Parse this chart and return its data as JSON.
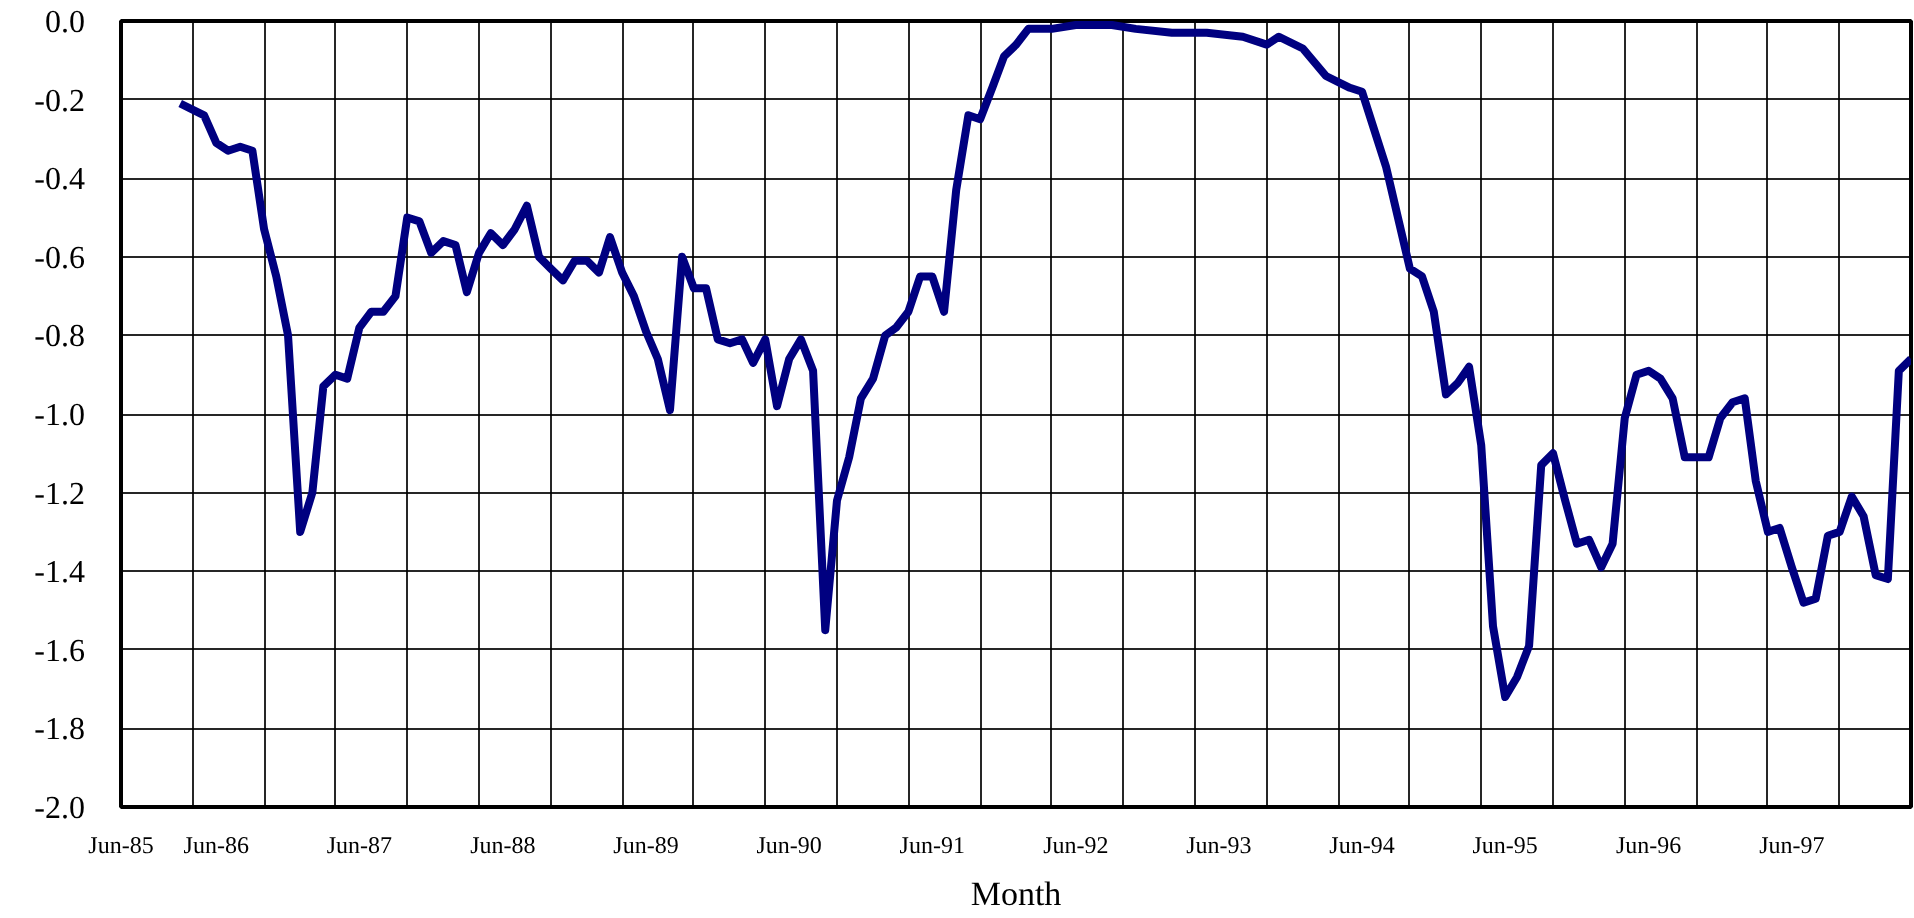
{
  "chart_data": {
    "type": "line",
    "xlabel": "Month",
    "x": [
      "1986-03",
      "1986-05",
      "1986-06",
      "1986-07",
      "1986-08",
      "1986-09",
      "1986-10",
      "1986-11",
      "1986-12",
      "1987-01",
      "1987-02",
      "1987-03",
      "1987-04",
      "1987-05",
      "1987-06",
      "1987-07",
      "1987-08",
      "1987-09",
      "1987-10",
      "1987-11",
      "1987-12",
      "1988-01",
      "1988-02",
      "1988-03",
      "1988-04",
      "1988-05",
      "1988-06",
      "1988-07",
      "1988-08",
      "1988-09",
      "1988-10",
      "1988-11",
      "1988-12",
      "1989-01",
      "1989-02",
      "1989-03",
      "1989-04",
      "1989-05",
      "1989-06",
      "1989-07",
      "1989-08",
      "1989-09",
      "1989-10",
      "1989-11",
      "1989-12",
      "1990-01",
      "1990-02",
      "1990-03",
      "1990-04",
      "1990-05",
      "1990-06",
      "1990-07",
      "1990-08",
      "1990-09",
      "1990-10",
      "1990-11",
      "1990-12",
      "1991-01",
      "1991-02",
      "1991-03",
      "1991-04",
      "1991-05",
      "1991-06",
      "1991-07",
      "1991-08",
      "1991-09",
      "1991-10",
      "1991-11",
      "1991-12",
      "1992-01",
      "1992-02",
      "1992-04",
      "1992-06",
      "1992-09",
      "1992-11",
      "1993-02",
      "1993-05",
      "1993-08",
      "1993-10",
      "1993-11",
      "1994-01",
      "1994-03",
      "1994-05",
      "1994-06",
      "1994-08",
      "1994-10",
      "1994-11",
      "1994-12",
      "1995-01",
      "1995-02",
      "1995-03",
      "1995-04",
      "1995-05",
      "1995-06",
      "1995-07",
      "1995-08",
      "1995-09",
      "1995-10",
      "1995-11",
      "1995-12",
      "1996-01",
      "1996-02",
      "1996-03",
      "1996-04",
      "1996-05",
      "1996-06",
      "1996-07",
      "1996-08",
      "1996-09",
      "1996-10",
      "1996-11",
      "1996-12",
      "1997-01",
      "1997-02",
      "1997-03",
      "1997-04",
      "1997-05",
      "1997-06",
      "1997-07",
      "1997-08",
      "1997-09",
      "1997-10",
      "1997-11",
      "1997-12",
      "1998-01",
      "1998-02",
      "1998-03",
      "1998-04"
    ],
    "series": [
      {
        "color": "#000080",
        "values": [
          -0.21,
          -0.24,
          -0.31,
          -0.33,
          -0.32,
          -0.33,
          -0.53,
          -0.65,
          -0.8,
          -1.3,
          -1.2,
          -0.93,
          -0.9,
          -0.91,
          -0.78,
          -0.74,
          -0.74,
          -0.7,
          -0.5,
          -0.51,
          -0.59,
          -0.56,
          -0.57,
          -0.69,
          -0.59,
          -0.54,
          -0.57,
          -0.53,
          -0.47,
          -0.6,
          -0.63,
          -0.66,
          -0.61,
          -0.61,
          -0.64,
          -0.55,
          -0.64,
          -0.7,
          -0.79,
          -0.86,
          -0.99,
          -0.6,
          -0.68,
          -0.68,
          -0.81,
          -0.82,
          -0.81,
          -0.87,
          -0.81,
          -0.98,
          -0.86,
          -0.81,
          -0.89,
          -1.55,
          -1.22,
          -1.11,
          -0.96,
          -0.91,
          -0.8,
          -0.78,
          -0.74,
          -0.65,
          -0.65,
          -0.74,
          -0.43,
          -0.24,
          -0.25,
          -0.17,
          -0.09,
          -0.06,
          -0.02,
          -0.02,
          -0.01,
          -0.01,
          -0.02,
          -0.03,
          -0.03,
          -0.04,
          -0.06,
          -0.04,
          -0.07,
          -0.14,
          -0.17,
          -0.18,
          -0.37,
          -0.63,
          -0.65,
          -0.74,
          -0.95,
          -0.92,
          -0.88,
          -1.08,
          -1.54,
          -1.72,
          -1.67,
          -1.59,
          -1.13,
          -1.1,
          -1.22,
          -1.33,
          -1.32,
          -1.39,
          -1.33,
          -1.01,
          -0.9,
          -0.89,
          -0.91,
          -0.96,
          -1.11,
          -1.11,
          -1.11,
          -1.01,
          -0.97,
          -0.96,
          -1.17,
          -1.3,
          -1.29,
          -1.39,
          -1.48,
          -1.47,
          -1.31,
          -1.3,
          -1.21,
          -1.26,
          -1.41,
          -1.42,
          -0.89,
          -0.86
        ]
      }
    ],
    "xlim": [
      "1985-10",
      "1998-04"
    ],
    "xticks": [
      {
        "value": "1985-10",
        "label": null
      },
      {
        "value": "1986-04",
        "label": null
      },
      {
        "value": "1986-06",
        "label": "Jun-86"
      },
      {
        "value": "1986-10",
        "label": null
      },
      {
        "value": "1987-04",
        "label": null
      },
      {
        "value": "1987-06",
        "label": "Jun-87"
      },
      {
        "value": "1987-10",
        "label": null
      },
      {
        "value": "1988-04",
        "label": null
      },
      {
        "value": "1988-06",
        "label": "Jun-88"
      },
      {
        "value": "1988-10",
        "label": null
      },
      {
        "value": "1989-04",
        "label": null
      },
      {
        "value": "1989-06",
        "label": "Jun-89"
      },
      {
        "value": "1989-10",
        "label": null
      },
      {
        "value": "1990-04",
        "label": null
      },
      {
        "value": "1990-06",
        "label": "Jun-90"
      },
      {
        "value": "1990-10",
        "label": null
      },
      {
        "value": "1991-04",
        "label": null
      },
      {
        "value": "1991-06",
        "label": "Jun-91"
      },
      {
        "value": "1991-10",
        "label": null
      },
      {
        "value": "1992-04",
        "label": null
      },
      {
        "value": "1992-06",
        "label": "Jun-92"
      },
      {
        "value": "1992-10",
        "label": null
      },
      {
        "value": "1993-04",
        "label": null
      },
      {
        "value": "1993-06",
        "label": "Jun-93"
      },
      {
        "value": "1993-10",
        "label": null
      },
      {
        "value": "1994-04",
        "label": null
      },
      {
        "value": "1994-06",
        "label": "Jun-94"
      },
      {
        "value": "1994-10",
        "label": null
      },
      {
        "value": "1995-04",
        "label": null
      },
      {
        "value": "1995-06",
        "label": "Jun-95"
      },
      {
        "value": "1995-10",
        "label": null
      },
      {
        "value": "1996-04",
        "label": null
      },
      {
        "value": "1996-06",
        "label": "Jun-96"
      },
      {
        "value": "1996-10",
        "label": null
      },
      {
        "value": "1997-04",
        "label": null
      },
      {
        "value": "1997-06",
        "label": "Jun-97"
      },
      {
        "value": "1997-10",
        "label": null
      }
    ],
    "ylim": [
      -2.0,
      0.0
    ],
    "yticks": [
      {
        "value": 0.0,
        "label": "0.0"
      },
      {
        "value": -0.2,
        "label": "-0.2"
      },
      {
        "value": -0.4,
        "label": "-0.4"
      },
      {
        "value": -0.6,
        "label": "-0.6"
      },
      {
        "value": -0.8,
        "label": "-0.8"
      },
      {
        "value": -1.0,
        "label": "-1.0"
      },
      {
        "value": -1.2,
        "label": "-1.2"
      },
      {
        "value": -1.4,
        "label": "-1.4"
      },
      {
        "value": -1.6,
        "label": "-1.6"
      },
      {
        "value": -1.8,
        "label": "-1.8"
      },
      {
        "value": -2.0,
        "label": "-2.0"
      }
    ],
    "annotations": [
      "Jun-85"
    ],
    "grid": true,
    "marker": "none",
    "line_style": "solid"
  }
}
